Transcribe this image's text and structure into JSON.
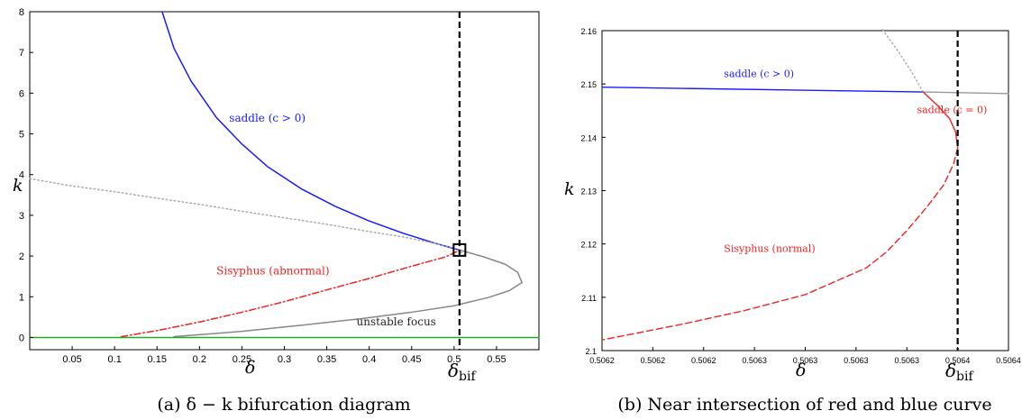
{
  "chart_data": [
    {
      "type": "line",
      "caption": "(a) δ − k bifurcation diagram",
      "xlabel": "δ",
      "ylabel": "k",
      "xlim": [
        0.0,
        0.6
      ],
      "ylim": [
        -0.3,
        8
      ],
      "xticks": [
        "0.05",
        "0.1",
        "0.15",
        "0.2",
        "0.25",
        "0.3",
        "0.35",
        "0.4",
        "0.45",
        "0.5",
        "0.55"
      ],
      "yticks": [
        "0",
        "1",
        "2",
        "3",
        "4",
        "5",
        "6",
        "7",
        "8"
      ],
      "vline": {
        "x": 0.5064,
        "label_main": "δ",
        "label_sub": "bif"
      },
      "marker": {
        "shape": "square",
        "x": 0.5064,
        "y": 2.148
      },
      "annotations": [
        {
          "id": "saddle",
          "text": "saddle (c > 0)",
          "color": "#1a1aff",
          "x": 0.235,
          "y": 5.3
        },
        {
          "id": "sisyphus",
          "text": "Sisyphus (abnormal)",
          "color": "#ee2222",
          "x": 0.22,
          "y": 1.55
        },
        {
          "id": "focus",
          "text": "unstable focus",
          "color": "#222222",
          "x": 0.385,
          "y": 0.3
        }
      ],
      "series": [
        {
          "id": "saddle",
          "style": "solid",
          "color": "#1a1aff",
          "x": [
            0.156,
            0.17,
            0.19,
            0.22,
            0.25,
            0.28,
            0.32,
            0.36,
            0.4,
            0.44,
            0.48,
            0.5064
          ],
          "y": [
            8.0,
            7.1,
            6.3,
            5.4,
            4.75,
            4.2,
            3.65,
            3.22,
            2.86,
            2.56,
            2.3,
            2.148
          ]
        },
        {
          "id": "dotted",
          "style": "dotted",
          "color": "#aaaaaa",
          "x": [
            0.0,
            0.05,
            0.1,
            0.15,
            0.2,
            0.25,
            0.3,
            0.35,
            0.4,
            0.44,
            0.48,
            0.5,
            0.515
          ],
          "y": [
            3.9,
            3.72,
            3.58,
            3.42,
            3.27,
            3.1,
            2.94,
            2.78,
            2.6,
            2.47,
            2.3,
            2.2,
            2.0
          ]
        },
        {
          "id": "sisyphus",
          "style": "dashdot",
          "color": "#ee2222",
          "x": [
            0.108,
            0.15,
            0.2,
            0.25,
            0.3,
            0.35,
            0.4,
            0.45,
            0.49,
            0.5064
          ],
          "y": [
            0.02,
            0.17,
            0.38,
            0.62,
            0.88,
            1.17,
            1.45,
            1.75,
            1.98,
            2.14
          ]
        },
        {
          "id": "focus",
          "style": "solid",
          "color": "#888888",
          "x": [
            0.17,
            0.25,
            0.32,
            0.39,
            0.45,
            0.5,
            0.54,
            0.565,
            0.58,
            0.575,
            0.56,
            0.535,
            0.5064
          ],
          "y": [
            0.02,
            0.15,
            0.3,
            0.46,
            0.62,
            0.78,
            0.98,
            1.15,
            1.35,
            1.6,
            1.8,
            1.98,
            2.148
          ]
        },
        {
          "id": "baseline",
          "style": "solid",
          "color": "#22aa22",
          "x": [
            0.0,
            0.6
          ],
          "y": [
            0.0,
            0.0
          ]
        }
      ]
    },
    {
      "type": "line",
      "caption": "(b) Near intersection of red and blue curve",
      "xlabel": "δ",
      "ylabel": "k",
      "xlim": [
        0.5062,
        0.5064
      ],
      "ylim": [
        2.1,
        2.16
      ],
      "xticks": [
        "0.5062",
        "0.5062",
        "0.5062",
        "0.5063",
        "0.5063",
        "0.5063",
        "0.5063",
        "0.5064",
        "0.5064"
      ],
      "yticks": [
        "2.1",
        "2.11",
        "2.12",
        "2.13",
        "2.14",
        "2.15",
        "2.16"
      ],
      "vline": {
        "x": 0.506375,
        "label_main": "δ",
        "label_sub": "bif"
      },
      "annotations": [
        {
          "id": "saddle",
          "text": "saddle (c > 0)",
          "color": "#1a1aff",
          "x": 0.50626,
          "y": 2.1513
        },
        {
          "id": "saddle0",
          "text": "saddle (c = 0)",
          "color": "#ee2222",
          "x": 0.506355,
          "y": 2.1445
        },
        {
          "id": "sisyphus",
          "text": "Sisyphus (normal)",
          "color": "#ee2222",
          "x": 0.50626,
          "y": 2.1185
        }
      ],
      "series": [
        {
          "id": "saddle",
          "style": "solid",
          "color": "#1a1aff",
          "x": [
            0.5062,
            0.506358
          ],
          "y": [
            2.1494,
            2.1485
          ]
        },
        {
          "id": "grey",
          "style": "solid",
          "color": "#999999",
          "x": [
            0.506358,
            0.5064
          ],
          "y": [
            2.1485,
            2.1482
          ]
        },
        {
          "id": "dotted",
          "style": "dotted",
          "color": "#aaaaaa",
          "x": [
            0.506338,
            0.506345,
            0.506352,
            0.506358
          ],
          "y": [
            2.1602,
            2.1565,
            2.1525,
            2.1485
          ]
        },
        {
          "id": "saddle0",
          "style": "solid",
          "color": "#ee2222",
          "x": [
            0.506358,
            0.506365,
            0.506371,
            0.506374,
            0.506375
          ],
          "y": [
            2.1485,
            2.146,
            2.1435,
            2.141,
            2.138
          ]
        },
        {
          "id": "sisyphus",
          "style": "dashed",
          "color": "#ee2222",
          "x": [
            0.506375,
            0.506373,
            0.506368,
            0.50636,
            0.50635,
            0.50634,
            0.50633,
            0.5063,
            0.50627,
            0.50624,
            0.5062
          ],
          "y": [
            2.138,
            2.135,
            2.131,
            2.127,
            2.1225,
            2.1185,
            2.1155,
            2.1105,
            2.1075,
            2.105,
            2.102
          ]
        }
      ]
    }
  ]
}
